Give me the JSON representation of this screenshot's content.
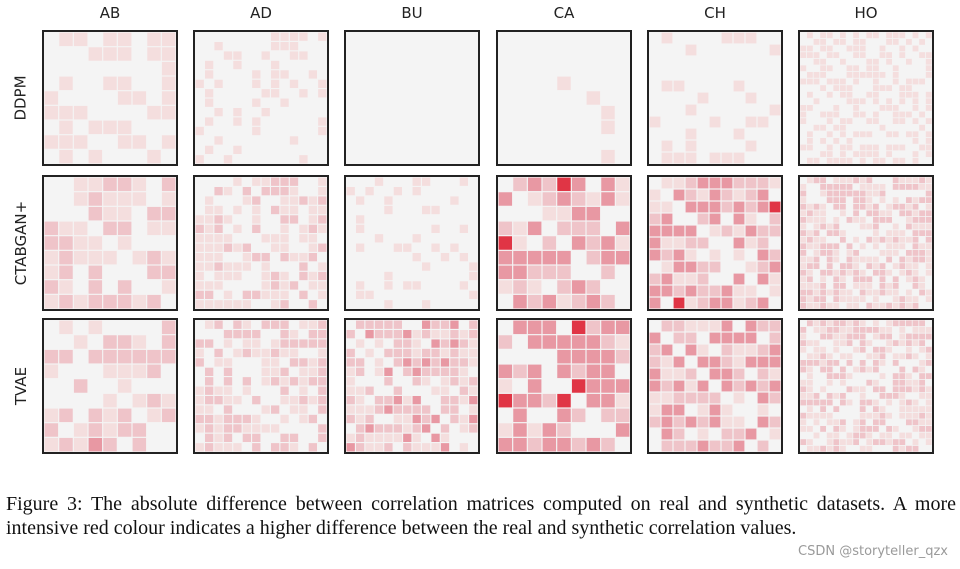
{
  "figure": {
    "columns": [
      "AB",
      "AD",
      "BU",
      "CA",
      "CH",
      "HO"
    ],
    "rows": [
      "DDPM",
      "CTABGAN+",
      "TVAE"
    ],
    "colors": {
      "base": "#f4f4f4",
      "light": "#f4dede",
      "mid": "#efc4c9",
      "strong": "#e898a3",
      "max": "#e03545",
      "frame": "#222222"
    }
  },
  "chart_data": {
    "type": "heatmap",
    "title": "",
    "description_values": "absolute difference between real and synthetic correlation matrices, arranged in a 3 x 6 grid of small heatmaps",
    "rows": [
      "DDPM",
      "CTABGAN+",
      "TVAE"
    ],
    "columns": [
      "AB",
      "AD",
      "BU",
      "CA",
      "CH",
      "HO"
    ],
    "matrix_size": {
      "AB": 9,
      "AD": 14,
      "BU": 14,
      "CA": 9,
      "CH": 11,
      "HO": 20
    },
    "intensity_summary": [
      [
        0.15,
        0.1,
        0.05,
        0.08,
        0.1,
        0.15
      ],
      [
        0.3,
        0.25,
        0.1,
        0.6,
        0.55,
        0.3
      ],
      [
        0.35,
        0.3,
        0.4,
        0.6,
        0.45,
        0.3
      ]
    ],
    "color_meaning": "more intensive red indicates higher difference"
  },
  "caption": {
    "text": "Figure 3:  The absolute difference between correlation matrices computed on real and synthetic datasets. A more intensive red colour indicates a higher difference between the real and synthetic correlation values."
  },
  "watermark": {
    "text": "CSDN @storyteller_qzx"
  }
}
